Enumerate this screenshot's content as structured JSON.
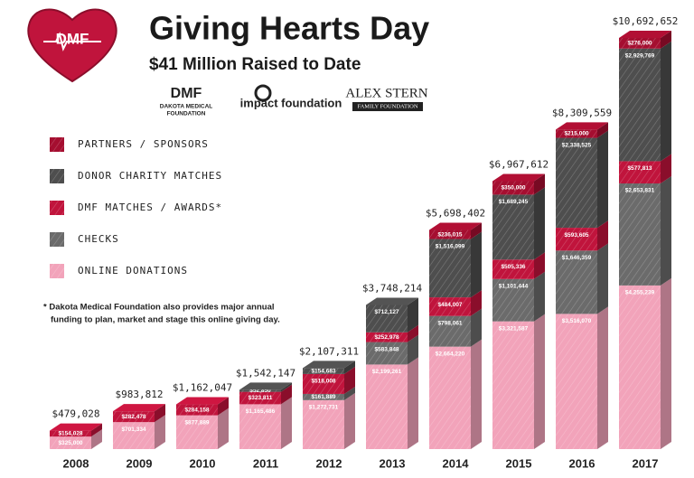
{
  "logos": {
    "heart": "DMF",
    "dmf_mark": "DMF",
    "dmf_name": "DAKOTA MEDICAL",
    "dmf_sub": "FOUNDATION",
    "impact": "impact foundation",
    "alex": "ALEX STERN",
    "alex_sub": "FAMILY FOUNDATION"
  },
  "chart_data": {
    "type": "bar",
    "stacked": true,
    "title": "Giving Hearts Day",
    "subtitle": "$41 Million Raised to Date",
    "note_line1": "* Dakota Medical Foundation also provides major annual",
    "note_line2": "funding to plan, market and stage this online giving day.",
    "categories": [
      "2008",
      "2009",
      "2010",
      "2011",
      "2012",
      "2013",
      "2014",
      "2015",
      "2016",
      "2017"
    ],
    "totals": [
      479028,
      983812,
      1162047,
      1542147,
      2107311,
      3748214,
      5698402,
      6967612,
      8309559,
      10692652
    ],
    "total_labels": [
      "$479,028",
      "$983,812",
      "$1,162,047",
      "$1,542,147",
      "$2,107,311",
      "$3,748,214",
      "$5,698,402",
      "$6,967,612",
      "$8,309,559",
      "$10,692,652"
    ],
    "series": [
      {
        "name": "ONLINE DONATIONS",
        "color": "#f2a3ba",
        "values": [
          325000,
          701334,
          877889,
          1165486,
          1272731,
          2199261,
          2664220,
          3321587,
          3516070,
          4255239
        ],
        "value_labels": [
          "$325,000",
          "$701,334",
          "$877,889",
          "$1,165,486",
          "$1,272,731",
          "$2,199,261",
          "$2,664,220",
          "$3,321,587",
          "$3,516,070",
          "$4,255,239"
        ]
      },
      {
        "name": "CHECKS",
        "color": "#6b6b6b",
        "values": [
          null,
          null,
          null,
          null,
          161889,
          583848,
          798061,
          1101444,
          1646359,
          2653831
        ],
        "value_labels": [
          null,
          null,
          null,
          null,
          "$161,889",
          "$583,848",
          "$798,061",
          "$1,101,444",
          "$1,646,359",
          "$2,653,831"
        ]
      },
      {
        "name": "DMF MATCHES / AWARDS*",
        "color": "#c0143c",
        "values": [
          154028,
          282478,
          284158,
          323811,
          518008,
          252978,
          484007,
          505336,
          593605,
          577813
        ],
        "value_labels": [
          "$154,028",
          "$282,478",
          "$284,158",
          "$323,811",
          "$518,008",
          "$252,978",
          "$484,007",
          "$505,336",
          "$593,605",
          "$577,813"
        ]
      },
      {
        "name": "DONOR CHARITY MATCHES",
        "color": "#4e4e4e",
        "values": [
          null,
          null,
          null,
          52850,
          154683,
          712127,
          1516099,
          1689245,
          2338525,
          2929769
        ],
        "value_labels": [
          null,
          null,
          null,
          "$52,850",
          "$154,683",
          "$712,127",
          "$1,516,099",
          "$1,689,245",
          "$2,338,525",
          "$2,929,769"
        ]
      },
      {
        "name": "PARTNERS / SPONSORS",
        "color": "#a50e30",
        "values": [
          null,
          null,
          null,
          null,
          null,
          null,
          236015,
          350000,
          215000,
          276000
        ],
        "value_labels": [
          null,
          null,
          null,
          null,
          null,
          null,
          "$236,015",
          "$350,000",
          "$215,000",
          "$276,000"
        ]
      }
    ]
  }
}
